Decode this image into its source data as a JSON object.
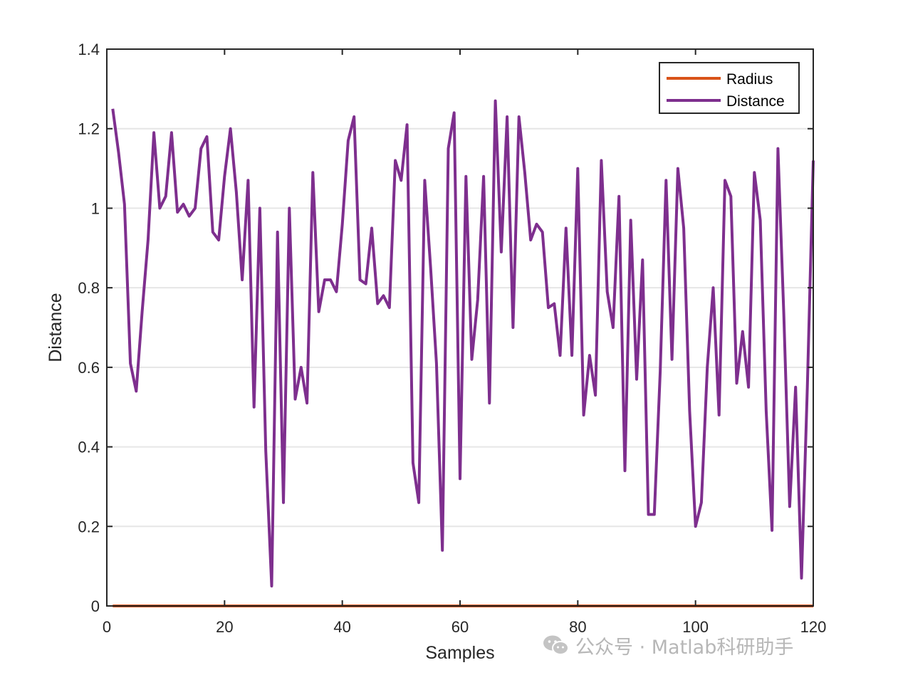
{
  "chart_data": {
    "type": "line",
    "title": "",
    "xlabel": "Samples",
    "ylabel": "Distance",
    "xlim": [
      0,
      120
    ],
    "ylim": [
      0,
      1.4
    ],
    "xticks": [
      0,
      20,
      40,
      60,
      80,
      100,
      120
    ],
    "yticks": [
      0,
      0.2,
      0.4,
      0.6,
      0.8,
      1,
      1.2,
      1.4
    ],
    "xtick_labels": [
      "0",
      "20",
      "40",
      "60",
      "80",
      "100",
      "120"
    ],
    "ytick_labels": [
      "0",
      "0.2",
      "0.4",
      "0.6",
      "0.8",
      "1",
      "1.2",
      "1.4"
    ],
    "grid": "y",
    "legend_position": "top-right",
    "series": [
      {
        "name": "Radius",
        "color": "#D95319",
        "x": [
          1,
          120
        ],
        "y": [
          0,
          0
        ]
      },
      {
        "name": "Distance",
        "color": "#7E2F8E",
        "x": [
          1,
          2,
          3,
          4,
          5,
          6,
          7,
          8,
          9,
          10,
          11,
          12,
          13,
          14,
          15,
          16,
          17,
          18,
          19,
          20,
          21,
          22,
          23,
          24,
          25,
          26,
          27,
          28,
          29,
          30,
          31,
          32,
          33,
          34,
          35,
          36,
          37,
          38,
          39,
          40,
          41,
          42,
          43,
          44,
          45,
          46,
          47,
          48,
          49,
          50,
          51,
          52,
          53,
          54,
          55,
          56,
          57,
          58,
          59,
          60,
          61,
          62,
          63,
          64,
          65,
          66,
          67,
          68,
          69,
          70,
          71,
          72,
          73,
          74,
          75,
          76,
          77,
          78,
          79,
          80,
          81,
          82,
          83,
          84,
          85,
          86,
          87,
          88,
          89,
          90,
          91,
          92,
          93,
          94,
          95,
          96,
          97,
          98,
          99,
          100,
          101,
          102,
          103,
          104,
          105,
          106,
          107,
          108,
          109,
          110,
          111,
          112,
          113,
          114,
          115,
          116,
          117,
          118,
          119,
          120
        ],
        "y": [
          1.25,
          1.14,
          1.01,
          0.61,
          0.54,
          0.74,
          0.92,
          1.19,
          1.0,
          1.03,
          1.19,
          0.99,
          1.01,
          0.98,
          1.0,
          1.15,
          1.18,
          0.94,
          0.92,
          1.08,
          1.2,
          1.04,
          0.82,
          1.07,
          0.5,
          1.0,
          0.39,
          0.05,
          0.94,
          0.26,
          1.0,
          0.52,
          0.6,
          0.51,
          1.09,
          0.74,
          0.82,
          0.82,
          0.79,
          0.96,
          1.17,
          1.23,
          0.82,
          0.81,
          0.95,
          0.76,
          0.78,
          0.75,
          1.12,
          1.07,
          1.21,
          0.36,
          0.26,
          1.07,
          0.85,
          0.61,
          0.14,
          1.15,
          1.24,
          0.32,
          1.08,
          0.62,
          0.77,
          1.08,
          0.51,
          1.27,
          0.89,
          1.23,
          0.7,
          1.23,
          1.09,
          0.92,
          0.96,
          0.94,
          0.75,
          0.76,
          0.63,
          0.95,
          0.63,
          1.1,
          0.48,
          0.63,
          0.53,
          1.12,
          0.79,
          0.7,
          1.03,
          0.34,
          0.97,
          0.57,
          0.87,
          0.23,
          0.23,
          0.59,
          1.07,
          0.62,
          1.1,
          0.95,
          0.49,
          0.2,
          0.26,
          0.6,
          0.8,
          0.48,
          1.07,
          1.03,
          0.56,
          0.69,
          0.55,
          1.09,
          0.97,
          0.49,
          0.19,
          1.15,
          0.73,
          0.25,
          0.55,
          0.07,
          0.55,
          1.12
        ]
      }
    ]
  },
  "watermark": {
    "text": "公众号 · Matlab科研助手",
    "icon": "wechat-icon"
  }
}
